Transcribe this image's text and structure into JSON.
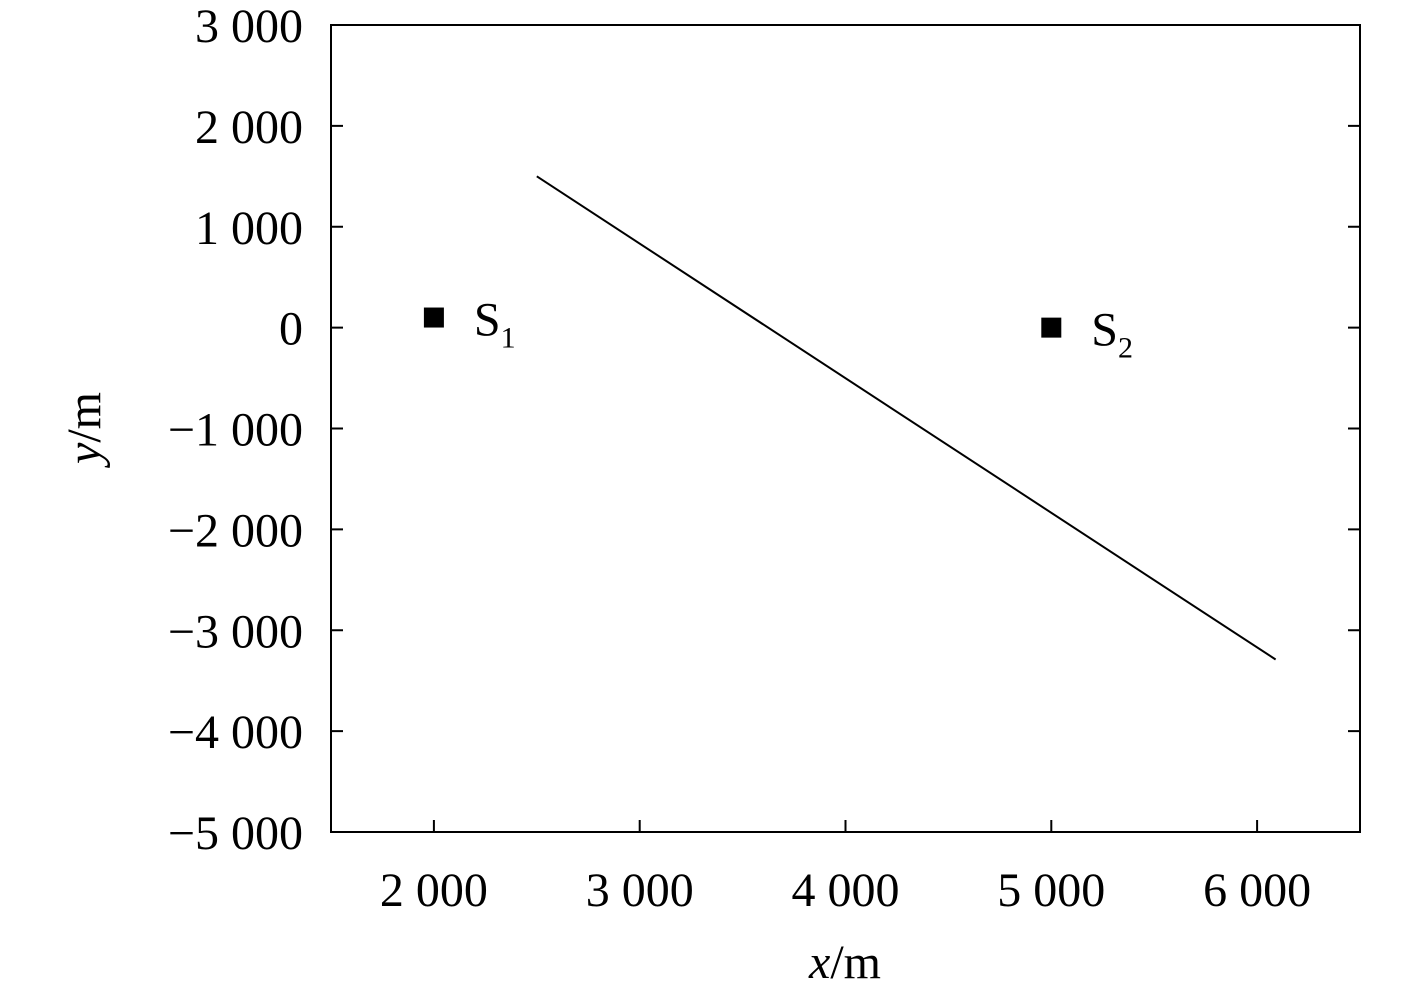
{
  "chart_data": {
    "type": "line",
    "xlabel": {
      "var": "x",
      "unit": "/m"
    },
    "ylabel": {
      "var": "y",
      "unit": "/m"
    },
    "xlim": [
      1500,
      6500
    ],
    "ylim": [
      -5000,
      3000
    ],
    "xticks": [
      {
        "value": 2000,
        "label": "2 000"
      },
      {
        "value": 3000,
        "label": "3 000"
      },
      {
        "value": 4000,
        "label": "4 000"
      },
      {
        "value": 5000,
        "label": "5 000"
      },
      {
        "value": 6000,
        "label": "6 000"
      }
    ],
    "yticks": [
      {
        "value": -5000,
        "label": "−5 000"
      },
      {
        "value": -4000,
        "label": "−4 000"
      },
      {
        "value": -3000,
        "label": "−3 000"
      },
      {
        "value": -2000,
        "label": "−2 000"
      },
      {
        "value": -1000,
        "label": "−1 000"
      },
      {
        "value": 0,
        "label": "0"
      },
      {
        "value": 1000,
        "label": "1 000"
      },
      {
        "value": 2000,
        "label": "2 000"
      },
      {
        "value": 3000,
        "label": "3 000"
      }
    ],
    "series": [
      {
        "color": "#000000",
        "x": [
          2500,
          6090
        ],
        "values": [
          1500,
          -3290
        ]
      }
    ],
    "points": [
      {
        "label": "S",
        "sub": "1",
        "x": 2000,
        "y": 100,
        "color": "#000000"
      },
      {
        "label": "S",
        "sub": "2",
        "x": 5000,
        "y": 0,
        "color": "#000000"
      }
    ],
    "grid": false
  }
}
